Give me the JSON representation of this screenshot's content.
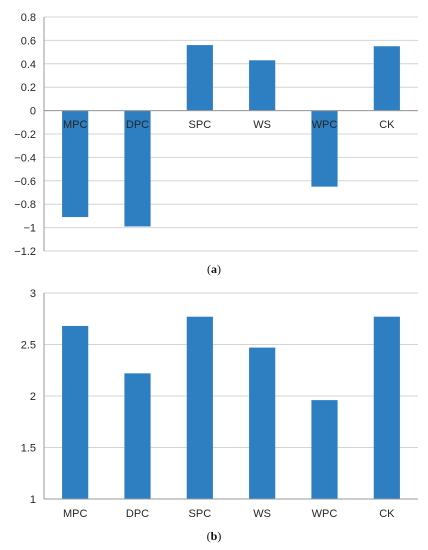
{
  "bar_color": "#2e7fc1",
  "chart_data": [
    {
      "type": "bar",
      "categories": [
        "MPC",
        "DPC",
        "SPC",
        "WS",
        "WPC",
        "CK"
      ],
      "values": [
        -0.91,
        -0.99,
        0.56,
        0.43,
        -0.65,
        0.55
      ],
      "ylim": [
        -1.2,
        0.8
      ],
      "yticks": [
        0.8,
        0.6,
        0.4,
        0.2,
        0,
        -0.2,
        -0.4,
        -0.6,
        -0.8,
        -1,
        -1.2
      ],
      "ytick_labels": [
        "0.8",
        "0.6",
        "0.4",
        "0.2",
        "0",
        "−0.2",
        "−0.4",
        "−0.6",
        "−0.8",
        "−1",
        "−1.2"
      ],
      "grid": true,
      "caption": "(a)"
    },
    {
      "type": "bar",
      "categories": [
        "MPC",
        "DPC",
        "SPC",
        "WS",
        "WPC",
        "CK"
      ],
      "values": [
        2.68,
        2.22,
        2.77,
        2.47,
        1.96,
        2.77
      ],
      "ylim": [
        1,
        3
      ],
      "yticks": [
        3,
        2.5,
        2,
        1.5,
        1
      ],
      "ytick_labels": [
        "3",
        "2.5",
        "2",
        "1.5",
        "1"
      ],
      "grid": true,
      "caption": "(b)"
    }
  ]
}
